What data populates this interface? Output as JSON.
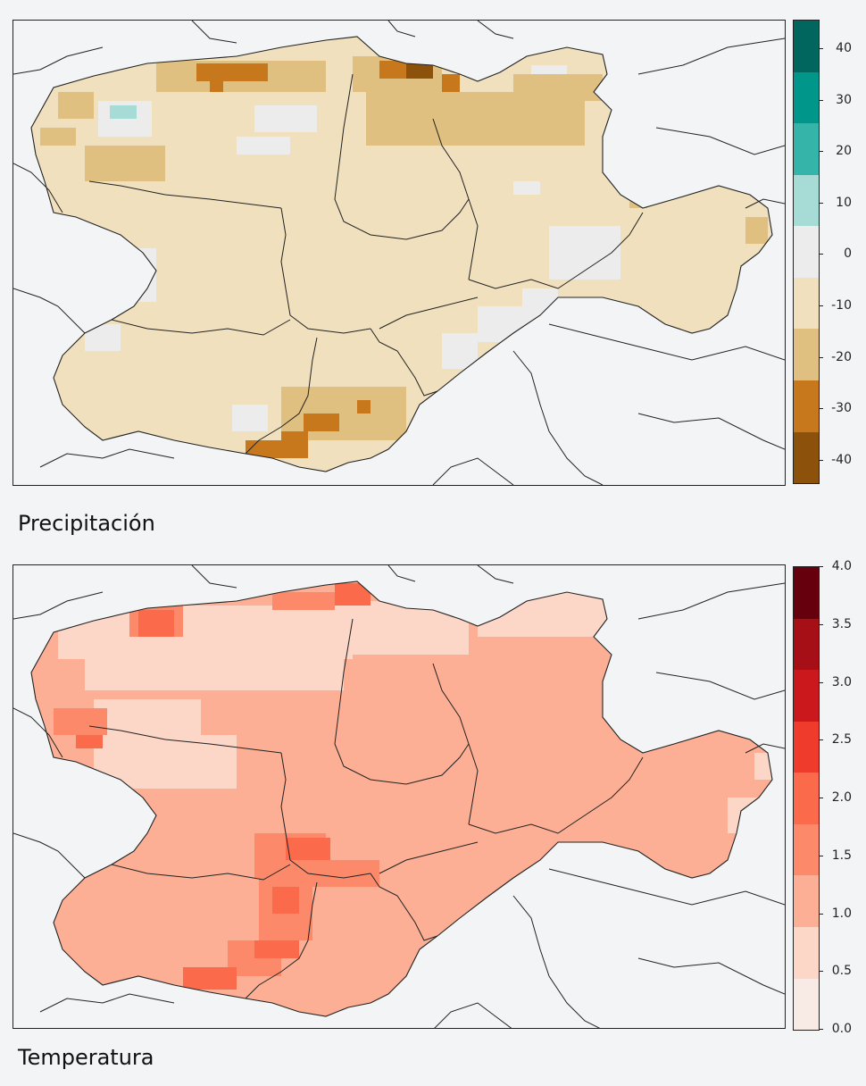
{
  "panels": [
    {
      "id": "precip",
      "title": "Precipitación",
      "legend_ticks": [
        "40",
        "30",
        "20",
        "10",
        "0",
        "-10",
        "-20",
        "-30",
        "-40"
      ],
      "legend_colors": [
        "#01665e",
        "#01968a",
        "#35b5a9",
        "#a7dcd6",
        "#ececec",
        "#f0e0be",
        "#dfc080",
        "#c8781c",
        "#8c510a"
      ],
      "bg_color": "#f0e0be"
    },
    {
      "id": "temp",
      "title": "Temperatura",
      "legend_ticks": [
        "4.0",
        "3.5",
        "3.0",
        "2.5",
        "2.0",
        "1.5",
        "1.0",
        "0.5",
        "0.0"
      ],
      "legend_colors": [
        "#67000d",
        "#a50f15",
        "#cb181d",
        "#ef3b2c",
        "#fb6a4a",
        "#fc8a6a",
        "#fcaf94",
        "#fcd6c7",
        "#f8ebe6"
      ],
      "bg_color": "#fcaf94"
    }
  ]
}
